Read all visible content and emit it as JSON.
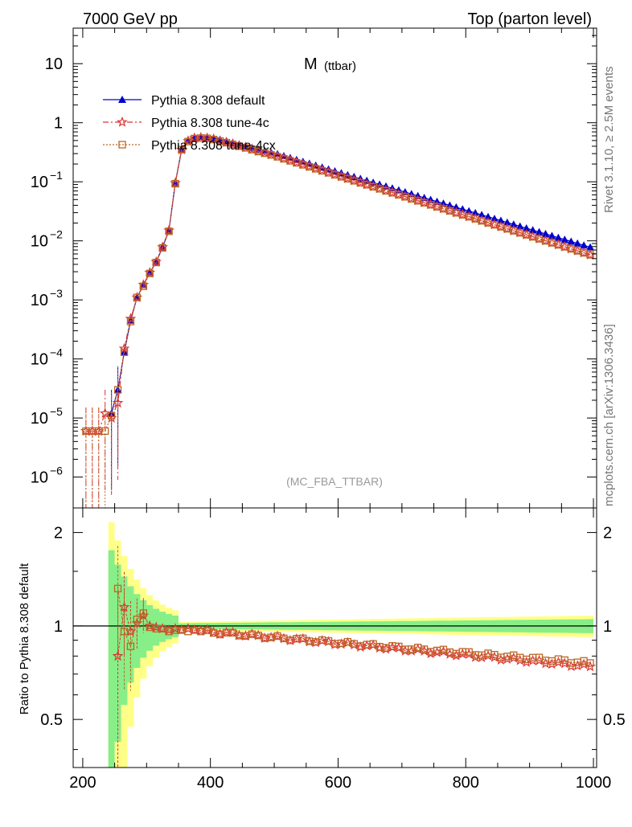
{
  "header": {
    "left": "7000 GeV pp",
    "right": "Top (parton level)"
  },
  "side_labels": {
    "rivet": "Rivet 3.1.10, ≥ 2.5M events",
    "mcplots": "mcplots.cern.ch [arXiv:1306.3436]"
  },
  "chart_data": [
    {
      "type": "line",
      "title": "M",
      "title_sub": "(ttbar)",
      "analysis_label": "(MC_FBA_TTBAR)",
      "xlabel": "",
      "ylabel": "",
      "xlim": [
        185,
        1005
      ],
      "ylim": [
        3e-07,
        40
      ],
      "yscale": "log",
      "y_ticks": [
        {
          "v": 1e-06,
          "label": "10",
          "exp": "−6"
        },
        {
          "v": 1e-05,
          "label": "10",
          "exp": "−5"
        },
        {
          "v": 0.0001,
          "label": "10",
          "exp": "−4"
        },
        {
          "v": 0.001,
          "label": "10",
          "exp": "−3"
        },
        {
          "v": 0.01,
          "label": "10",
          "exp": "−2"
        },
        {
          "v": 0.1,
          "label": "10",
          "exp": "−1"
        },
        {
          "v": 1,
          "label": "1",
          "exp": ""
        },
        {
          "v": 10,
          "label": "10",
          "exp": ""
        }
      ],
      "legend_position": "top-left",
      "series": [
        {
          "name": "Pythia 8.308 default",
          "color": "#0000cc",
          "marker": "triangle",
          "dash": "",
          "x": [
            245,
            255,
            265,
            275,
            285,
            295,
            305,
            315,
            325,
            335,
            345,
            355,
            365,
            375,
            385,
            395,
            405,
            415,
            425,
            435,
            445,
            455,
            465,
            475,
            485,
            495
          ],
          "y": [
            1.2e-05,
            3e-05,
            0.00013,
            0.00045,
            0.0011,
            0.0018,
            0.0029,
            0.0044,
            0.0078,
            0.015,
            0.095,
            0.36,
            0.5,
            0.56,
            0.58,
            0.57,
            0.55,
            0.52,
            0.49,
            0.46,
            0.43,
            0.405,
            0.38,
            0.355,
            0.335,
            0.315
          ],
          "y_tail": {
            "x_from": 505,
            "x_to": 995,
            "step": 10,
            "y_from": 0.295,
            "y_to": 0.0078
          }
        },
        {
          "name": "Pythia 8.308 tune-4c",
          "color": "#dd3333",
          "marker": "star",
          "dash": "7,3,2,3",
          "x": [
            205,
            215,
            225,
            235,
            245,
            255,
            265,
            275,
            285,
            295,
            305,
            315,
            325,
            335,
            345,
            355,
            365,
            375,
            385,
            395,
            405,
            415,
            425,
            435,
            445,
            455,
            465,
            475,
            485,
            495
          ],
          "y": [
            6e-06,
            6e-06,
            6e-06,
            1.2e-05,
            1e-05,
            1.8e-05,
            0.00015,
            0.00048,
            0.0011,
            0.0018,
            0.0029,
            0.0044,
            0.0078,
            0.015,
            0.095,
            0.35,
            0.49,
            0.55,
            0.56,
            0.55,
            0.53,
            0.49,
            0.465,
            0.435,
            0.405,
            0.38,
            0.355,
            0.33,
            0.31,
            0.29
          ],
          "y_tail": {
            "x_from": 505,
            "x_to": 995,
            "step": 10,
            "y_from": 0.27,
            "y_to": 0.0058
          }
        },
        {
          "name": "Pythia 8.308 tune-4cx",
          "color": "#bb6622",
          "marker": "square",
          "dash": "2,2",
          "x": [
            205,
            215,
            225,
            235,
            245,
            255,
            265,
            275,
            285,
            295,
            305,
            315,
            325,
            335,
            345,
            355,
            365,
            375,
            385,
            395,
            405,
            415,
            425,
            435,
            445,
            455,
            465,
            475,
            485,
            495
          ],
          "y": [
            6e-06,
            6e-06,
            6e-06,
            6e-06,
            1.1e-05,
            3e-05,
            0.00013,
            0.00043,
            0.0011,
            0.0017,
            0.0028,
            0.0043,
            0.0076,
            0.0145,
            0.093,
            0.35,
            0.48,
            0.54,
            0.55,
            0.545,
            0.52,
            0.49,
            0.46,
            0.43,
            0.4,
            0.375,
            0.35,
            0.325,
            0.305,
            0.285
          ],
          "y_tail": {
            "x_from": 505,
            "x_to": 995,
            "step": 10,
            "y_from": 0.265,
            "y_to": 0.0058
          }
        }
      ]
    },
    {
      "type": "line",
      "title": "",
      "xlabel": "",
      "ylabel": "Ratio to Pythia 8.308 default",
      "xlim": [
        185,
        1005
      ],
      "ylim": [
        0.35,
        2.4
      ],
      "yscale": "log",
      "y_ticks": [
        {
          "v": 0.5,
          "label": "0.5"
        },
        {
          "v": 1,
          "label": "1"
        },
        {
          "v": 2,
          "label": "2"
        }
      ],
      "x_ticks": [
        200,
        400,
        600,
        800,
        1000
      ],
      "x_tick_labels": [
        "200",
        "400",
        "600",
        "800",
        "1000"
      ],
      "reference": 1,
      "band_colors": {
        "outer": "#ffff88",
        "inner": "#88ee88"
      },
      "series": [
        {
          "name": "Pythia 8.308 tune-4c",
          "color": "#dd3333",
          "marker": "star",
          "x": [
            255,
            265,
            275,
            285,
            295,
            305,
            315,
            325,
            335,
            345,
            355,
            365,
            375
          ],
          "y": [
            0.8,
            1.15,
            0.96,
            1.02,
            1.08,
            1.0,
            0.99,
            0.98,
            0.97,
            0.98,
            0.97,
            0.98,
            0.97
          ],
          "y_tail": {
            "x_from": 385,
            "x_to": 995,
            "step": 10,
            "y_from": 0.965,
            "y_to": 0.74
          }
        },
        {
          "name": "Pythia 8.308 tune-4cx",
          "color": "#bb6622",
          "marker": "square",
          "x": [
            255,
            265,
            275,
            285,
            295,
            305,
            315,
            325,
            335,
            345,
            355,
            365,
            375
          ],
          "y": [
            1.32,
            0.96,
            0.86,
            1.05,
            1.1,
            0.99,
            0.98,
            0.98,
            0.96,
            0.97,
            0.97,
            0.96,
            0.97
          ],
          "y_tail": {
            "x_from": 385,
            "x_to": 995,
            "step": 10,
            "y_from": 0.96,
            "y_to": 0.76
          }
        }
      ]
    }
  ]
}
